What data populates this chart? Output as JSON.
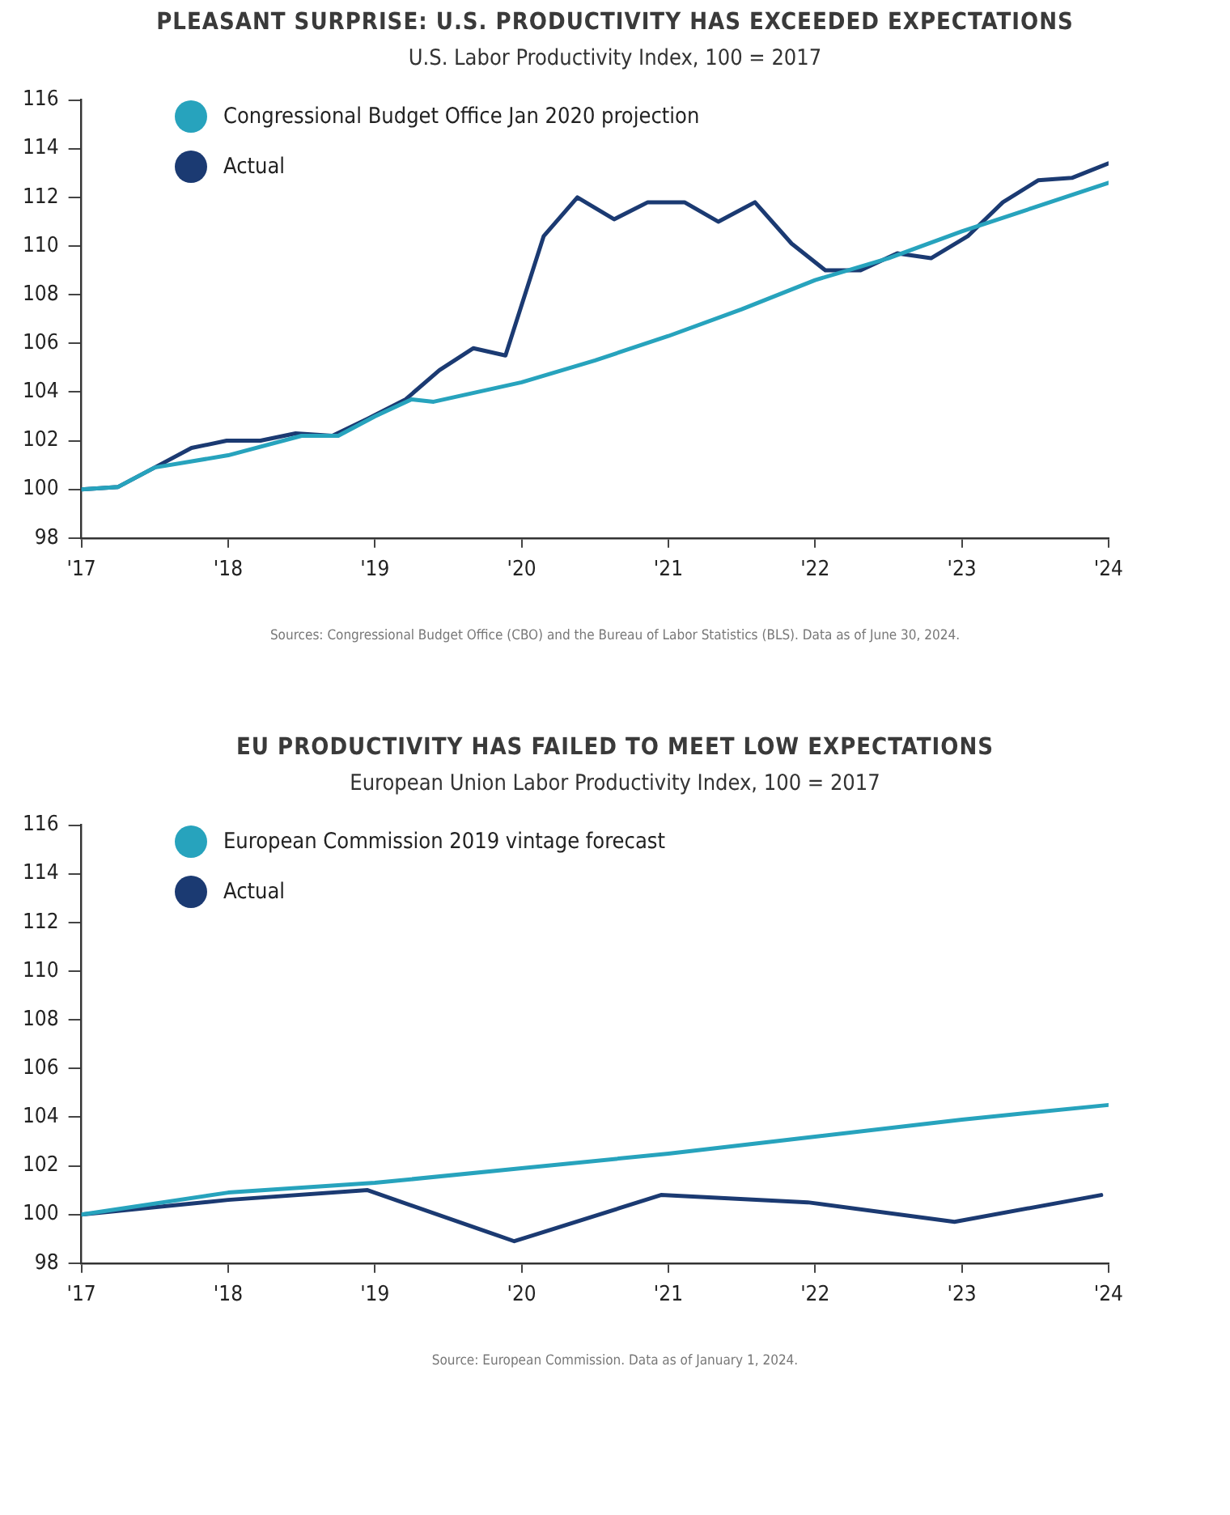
{
  "chart_data": [
    {
      "type": "line",
      "title": "PLEASANT SURPRISE: U.S. PRODUCTIVITY HAS EXCEEDED EXPECTATIONS",
      "subtitle": "U.S. Labor Productivity Index, 100 = 2017",
      "marker": "none",
      "line_style": "solid",
      "grid": false,
      "legend": "top left",
      "xlim": [
        2017,
        2024
      ],
      "xticks": [
        {
          "value": 2017,
          "label": "'17"
        },
        {
          "value": 2018,
          "label": "'18"
        },
        {
          "value": 2019,
          "label": "'19"
        },
        {
          "value": 2020,
          "label": "'20"
        },
        {
          "value": 2021,
          "label": "'21"
        },
        {
          "value": 2022,
          "label": "'22"
        },
        {
          "value": 2023,
          "label": "'23"
        },
        {
          "value": 2024,
          "label": "'24"
        }
      ],
      "ylim": [
        98,
        116
      ],
      "yticks": [
        98,
        100,
        102,
        104,
        106,
        108,
        110,
        112,
        114,
        116
      ],
      "series": [
        {
          "name": "Congressional Budget Office Jan 2020 projection",
          "color": "#27a3bd",
          "x": [
            2017,
            2017.25,
            2017.5,
            2018,
            2018.5,
            2018.75,
            2019,
            2019.25,
            2019.4,
            2020,
            2020.5,
            2021,
            2021.5,
            2022,
            2022.5,
            2023,
            2023.5,
            2024
          ],
          "values": [
            100,
            100.1,
            100.9,
            101.4,
            102.2,
            102.2,
            103,
            103.7,
            103.6,
            104.4,
            105.3,
            106.3,
            107.4,
            108.6,
            109.5,
            110.6,
            111.6,
            112.6
          ]
        },
        {
          "name": "Actual",
          "color": "#1b3a72",
          "x": [
            2017,
            2017.25,
            2017.5,
            2017.75,
            2017.99,
            2018.22,
            2018.46,
            2018.71,
            2018.95,
            2019.21,
            2019.44,
            2019.67,
            2019.89,
            2020.15,
            2020.38,
            2020.63,
            2020.86,
            2021.11,
            2021.34,
            2021.59,
            2021.84,
            2022.07,
            2022.31,
            2022.56,
            2022.79,
            2023.04,
            2023.28,
            2023.52,
            2023.75,
            2024
          ],
          "values": [
            100,
            100.1,
            100.9,
            101.7,
            102,
            102,
            102.3,
            102.2,
            102.9,
            103.7,
            104.9,
            105.8,
            105.5,
            110.4,
            112,
            111.1,
            111.8,
            111.8,
            111,
            111.8,
            110.1,
            109,
            109,
            109.7,
            109.5,
            110.4,
            111.8,
            112.7,
            112.8,
            113.4
          ]
        }
      ],
      "annotations": [
        "Sources: Congressional Budget Office (CBO) and the Bureau of Labor Statistics (BLS). Data as of June 30, 2024."
      ]
    },
    {
      "type": "line",
      "title": "EU PRODUCTIVITY HAS FAILED TO MEET LOW EXPECTATIONS",
      "subtitle": "European Union Labor Productivity Index, 100 = 2017",
      "marker": "none",
      "line_style": "solid",
      "grid": false,
      "legend": "top left",
      "xlim": [
        2017,
        2024
      ],
      "xticks": [
        {
          "value": 2017,
          "label": "'17"
        },
        {
          "value": 2018,
          "label": "'18"
        },
        {
          "value": 2019,
          "label": "'19"
        },
        {
          "value": 2020,
          "label": "'20"
        },
        {
          "value": 2021,
          "label": "'21"
        },
        {
          "value": 2022,
          "label": "'22"
        },
        {
          "value": 2023,
          "label": "'23"
        },
        {
          "value": 2024,
          "label": "'24"
        }
      ],
      "ylim": [
        98,
        116
      ],
      "yticks": [
        98,
        100,
        102,
        104,
        106,
        108,
        110,
        112,
        114,
        116
      ],
      "series": [
        {
          "name": "European Commission 2019 vintage forecast",
          "color": "#27a3bd",
          "x": [
            2017,
            2018,
            2019,
            2020,
            2021,
            2022,
            2023,
            2024
          ],
          "values": [
            100,
            100.9,
            101.3,
            101.9,
            102.5,
            103.2,
            103.9,
            104.5
          ]
        },
        {
          "name": "Actual",
          "color": "#1b3a72",
          "x": [
            2017,
            2018,
            2018.95,
            2019.95,
            2020.95,
            2021.95,
            2022.95,
            2023.95
          ],
          "values": [
            100,
            100.6,
            101,
            98.9,
            100.8,
            100.5,
            99.7,
            100.8
          ]
        }
      ],
      "annotations": [
        "Source: European Commission. Data as of January 1, 2024."
      ]
    }
  ]
}
